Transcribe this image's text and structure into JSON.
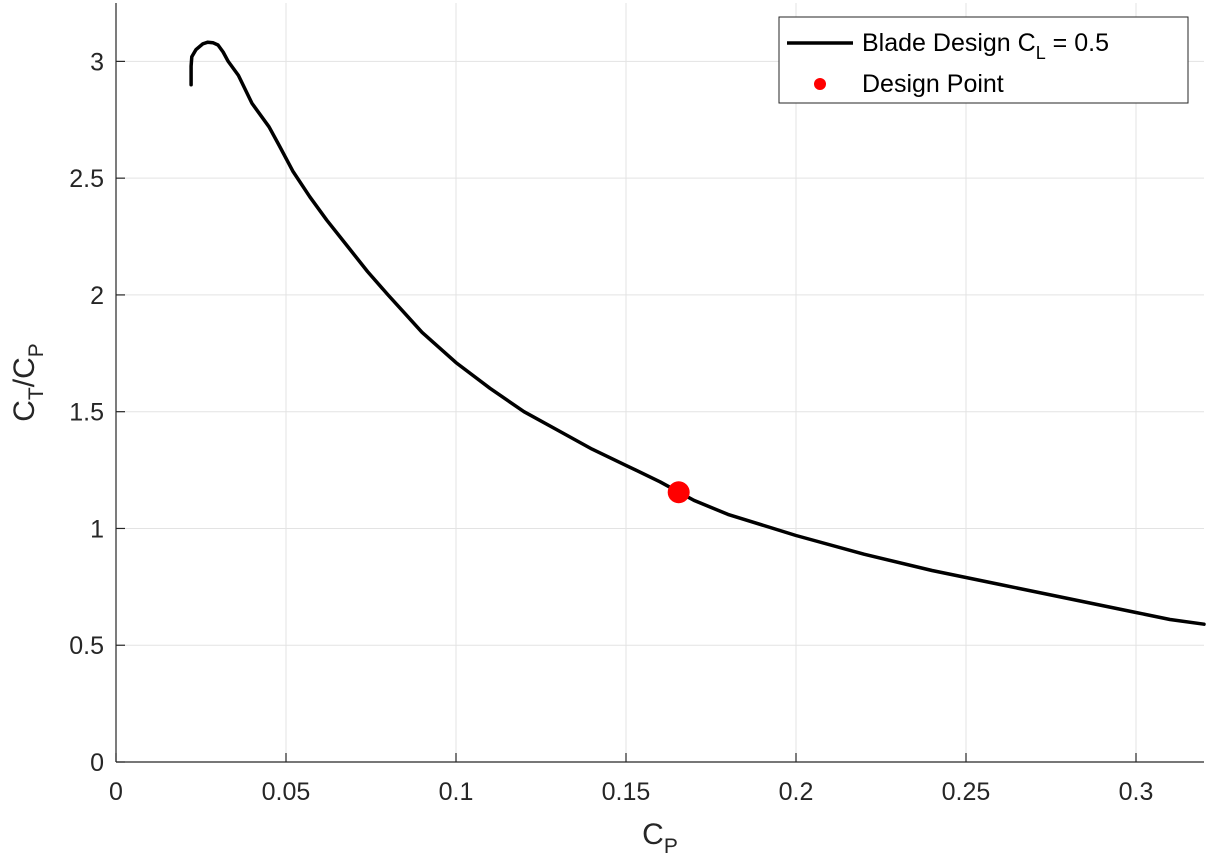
{
  "chart_data": {
    "type": "line",
    "xlabel": {
      "main": "C",
      "sub": "P"
    },
    "ylabel": {
      "parts": [
        {
          "t": "C",
          "sub": "T"
        },
        {
          "t": "/C",
          "sub": "P"
        }
      ]
    },
    "xlim": [
      0,
      0.32
    ],
    "ylim": [
      0,
      3.25
    ],
    "xticks": [
      0,
      0.05,
      0.1,
      0.15,
      0.2,
      0.25,
      0.3
    ],
    "xtick_labels": [
      "0",
      "0.05",
      "0.1",
      "0.15",
      "0.2",
      "0.25",
      "0.3"
    ],
    "yticks": [
      0,
      0.5,
      1,
      1.5,
      2,
      2.5,
      3
    ],
    "ytick_labels": [
      "0",
      "0.5",
      "1",
      "1.5",
      "2",
      "2.5",
      "3"
    ],
    "grid": true,
    "legend_position": "top-right",
    "series": [
      {
        "name": "Blade Design C",
        "name_sub": "L",
        "name_suffix": " = 0.5",
        "kind": "line",
        "color": "#000000",
        "points": [
          [
            0.0221,
            2.9
          ],
          [
            0.0221,
            2.98
          ],
          [
            0.0223,
            3.02
          ],
          [
            0.0235,
            3.05
          ],
          [
            0.0255,
            3.075
          ],
          [
            0.027,
            3.082
          ],
          [
            0.0285,
            3.08
          ],
          [
            0.03,
            3.07
          ],
          [
            0.0315,
            3.04
          ],
          [
            0.033,
            3.0
          ],
          [
            0.036,
            2.94
          ],
          [
            0.04,
            2.82
          ],
          [
            0.045,
            2.72
          ],
          [
            0.048,
            2.64
          ],
          [
            0.052,
            2.53
          ],
          [
            0.057,
            2.42
          ],
          [
            0.062,
            2.32
          ],
          [
            0.068,
            2.21
          ],
          [
            0.074,
            2.1
          ],
          [
            0.08,
            2.0
          ],
          [
            0.085,
            1.92
          ],
          [
            0.09,
            1.84
          ],
          [
            0.1,
            1.71
          ],
          [
            0.11,
            1.6
          ],
          [
            0.12,
            1.5
          ],
          [
            0.13,
            1.42
          ],
          [
            0.14,
            1.34
          ],
          [
            0.15,
            1.27
          ],
          [
            0.16,
            1.2
          ],
          [
            0.17,
            1.12
          ],
          [
            0.18,
            1.06
          ],
          [
            0.2,
            0.97
          ],
          [
            0.22,
            0.89
          ],
          [
            0.24,
            0.82
          ],
          [
            0.26,
            0.76
          ],
          [
            0.28,
            0.7
          ],
          [
            0.29,
            0.67
          ],
          [
            0.3,
            0.64
          ],
          [
            0.31,
            0.61
          ],
          [
            0.32,
            0.59
          ]
        ]
      },
      {
        "name": "Design Point",
        "kind": "marker",
        "color": "#ff0000",
        "points": [
          [
            0.1655,
            1.155
          ]
        ]
      }
    ]
  }
}
